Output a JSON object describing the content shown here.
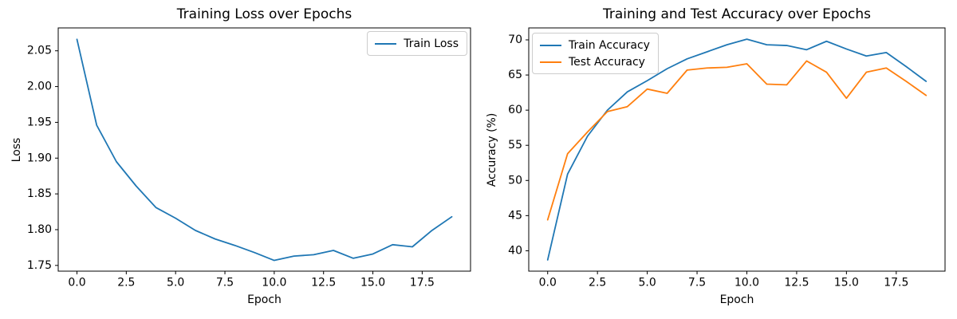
{
  "figure": {
    "background": "#ffffff",
    "axis_color": "#000000",
    "legend_border_color": "#cccccc"
  },
  "chart_data": [
    {
      "type": "line",
      "title": "Training Loss over Epochs",
      "xlabel": "Epoch",
      "ylabel": "Loss",
      "xlim": [
        -0.95,
        19.95
      ],
      "ylim": [
        1.742,
        2.082
      ],
      "grid": false,
      "legend_position": "top-right",
      "xticks": {
        "values": [
          0,
          2.5,
          5,
          7.5,
          10,
          12.5,
          15,
          17.5
        ],
        "labels": [
          "0.0",
          "2.5",
          "5.0",
          "7.5",
          "10.0",
          "12.5",
          "15.0",
          "17.5"
        ]
      },
      "yticks": {
        "values": [
          1.75,
          1.8,
          1.85,
          1.9,
          1.95,
          2.0,
          2.05
        ],
        "labels": [
          "1.75",
          "1.80",
          "1.85",
          "1.90",
          "1.95",
          "2.00",
          "2.05"
        ]
      },
      "x": [
        0,
        1,
        2,
        3,
        4,
        5,
        6,
        7,
        8,
        9,
        10,
        11,
        12,
        13,
        14,
        15,
        16,
        17,
        18,
        19
      ],
      "series": [
        {
          "name": "Train Loss",
          "color": "#1f77b4",
          "values": [
            2.066,
            1.946,
            1.895,
            1.861,
            1.831,
            1.816,
            1.799,
            1.787,
            1.778,
            1.768,
            1.757,
            1.763,
            1.765,
            1.771,
            1.76,
            1.766,
            1.779,
            1.776,
            1.799,
            1.818
          ]
        }
      ]
    },
    {
      "type": "line",
      "title": "Training and Test Accuracy over Epochs",
      "xlabel": "Epoch",
      "ylabel": "Accuracy (%)",
      "xlim": [
        -0.95,
        19.95
      ],
      "ylim": [
        37.1,
        71.7
      ],
      "grid": false,
      "legend_position": "top-left",
      "xticks": {
        "values": [
          0,
          2.5,
          5,
          7.5,
          10,
          12.5,
          15,
          17.5
        ],
        "labels": [
          "0.0",
          "2.5",
          "5.0",
          "7.5",
          "10.0",
          "12.5",
          "15.0",
          "17.5"
        ]
      },
      "yticks": {
        "values": [
          40,
          45,
          50,
          55,
          60,
          65,
          70
        ],
        "labels": [
          "40",
          "45",
          "50",
          "55",
          "60",
          "65",
          "70"
        ]
      },
      "x": [
        0,
        1,
        2,
        3,
        4,
        5,
        6,
        7,
        8,
        9,
        10,
        11,
        12,
        13,
        14,
        15,
        16,
        17,
        18,
        19
      ],
      "series": [
        {
          "name": "Train Accuracy",
          "color": "#1f77b4",
          "values": [
            38.7,
            50.9,
            56.3,
            60.0,
            62.6,
            64.2,
            65.9,
            67.3,
            68.3,
            69.3,
            70.1,
            69.3,
            69.2,
            68.6,
            69.8,
            68.7,
            67.7,
            68.2,
            66.2,
            64.1
          ]
        },
        {
          "name": "Test Accuracy",
          "color": "#ff7f0e",
          "values": [
            44.4,
            53.8,
            56.9,
            59.8,
            60.5,
            63.0,
            62.4,
            65.7,
            66.0,
            66.1,
            66.6,
            63.7,
            63.6,
            67.0,
            65.4,
            61.7,
            65.4,
            66.0,
            64.1,
            62.1
          ]
        }
      ]
    }
  ]
}
